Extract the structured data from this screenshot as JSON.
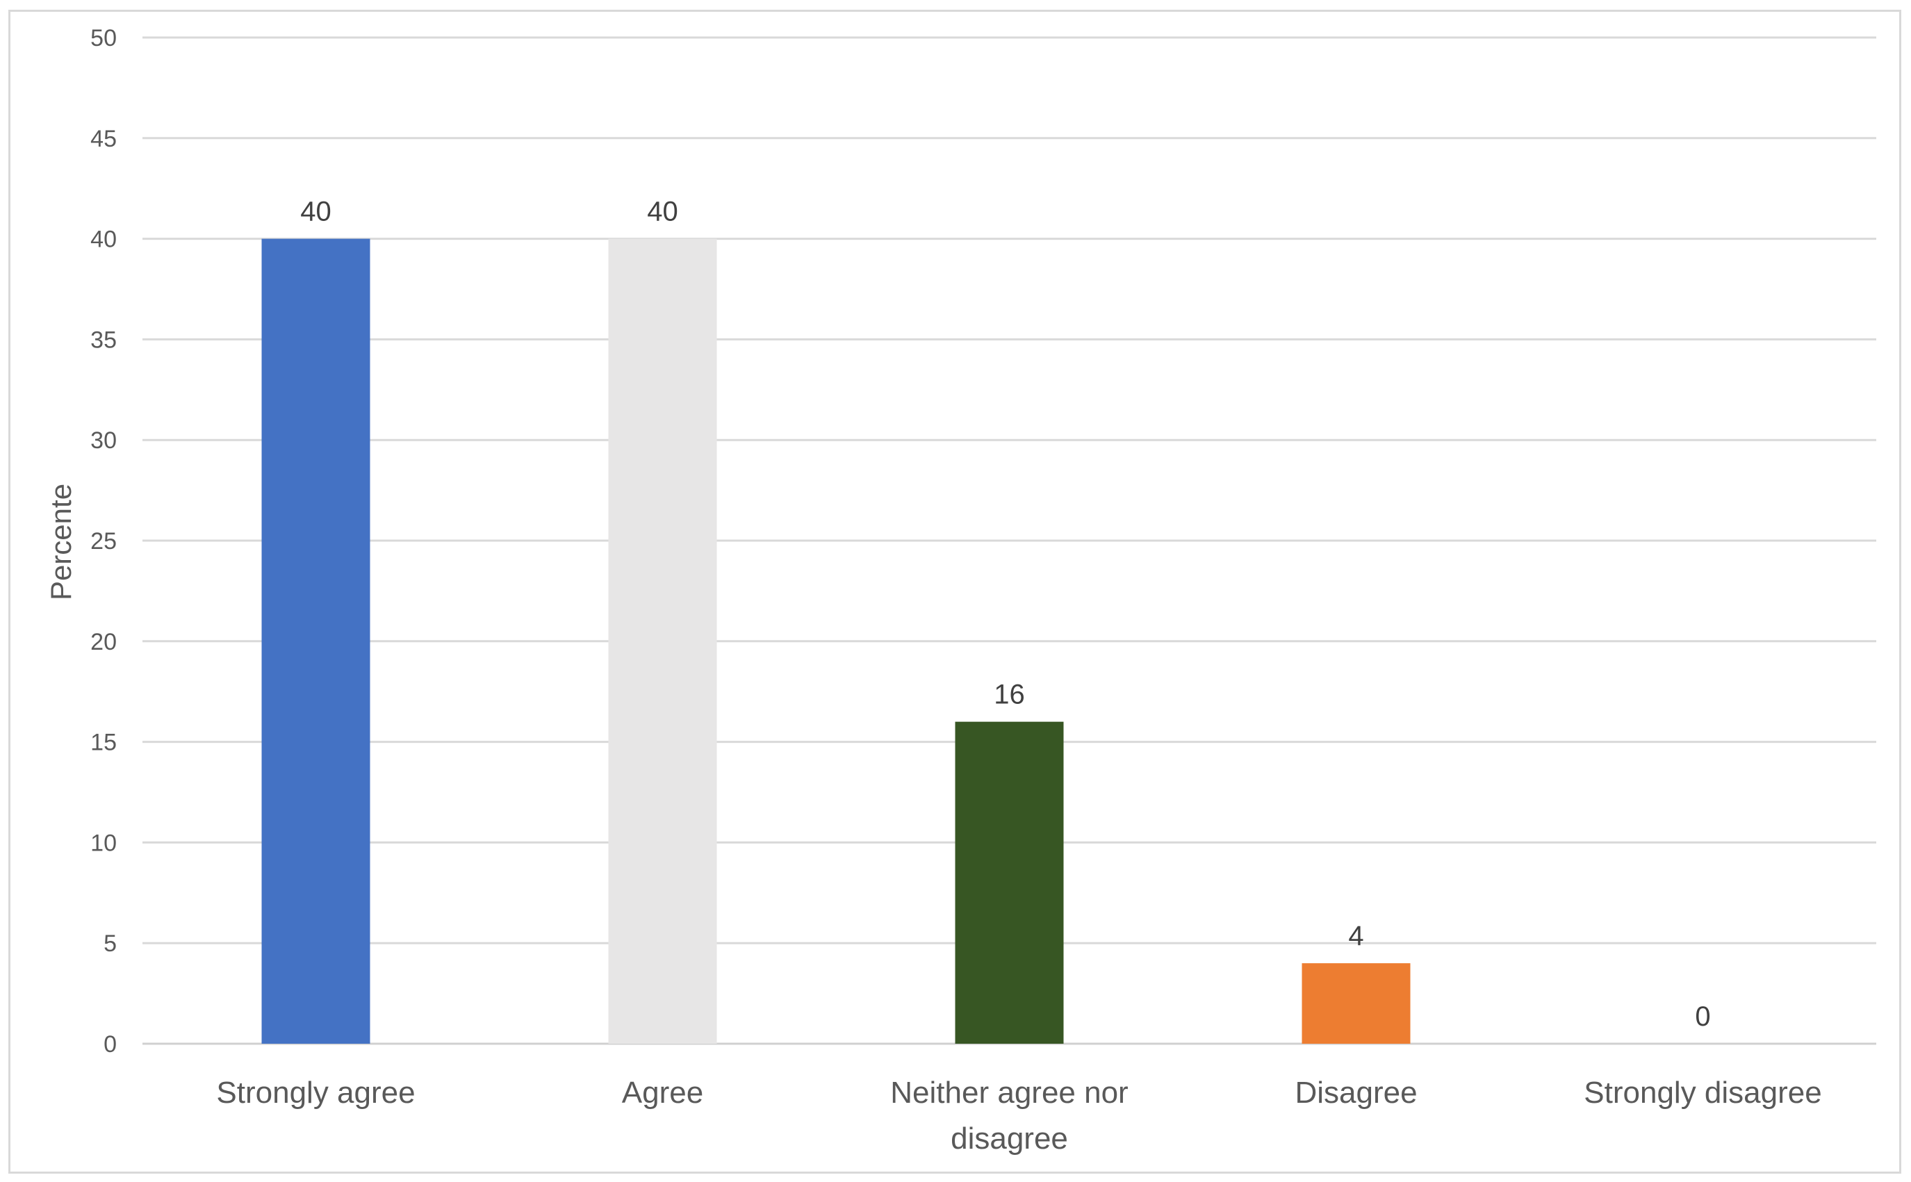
{
  "chart_data": {
    "type": "bar",
    "title": "",
    "xlabel": "",
    "ylabel": "Percente",
    "ylim": [
      0,
      50
    ],
    "ytick_step": 5,
    "grid": true,
    "legend": "none",
    "categories": [
      [
        "Strongly agree"
      ],
      [
        "Agree"
      ],
      [
        "Neither agree nor",
        "disagree"
      ],
      [
        "Disagree"
      ],
      [
        "Strongly disagree"
      ]
    ],
    "values": [
      40,
      40,
      16,
      4,
      0
    ],
    "data_labels": [
      "40",
      "40",
      "16",
      "4",
      "0"
    ],
    "colors": [
      "#4472C4",
      "#E7E6E6",
      "#375623",
      "#ED7D31",
      "#A5A5A5"
    ]
  }
}
